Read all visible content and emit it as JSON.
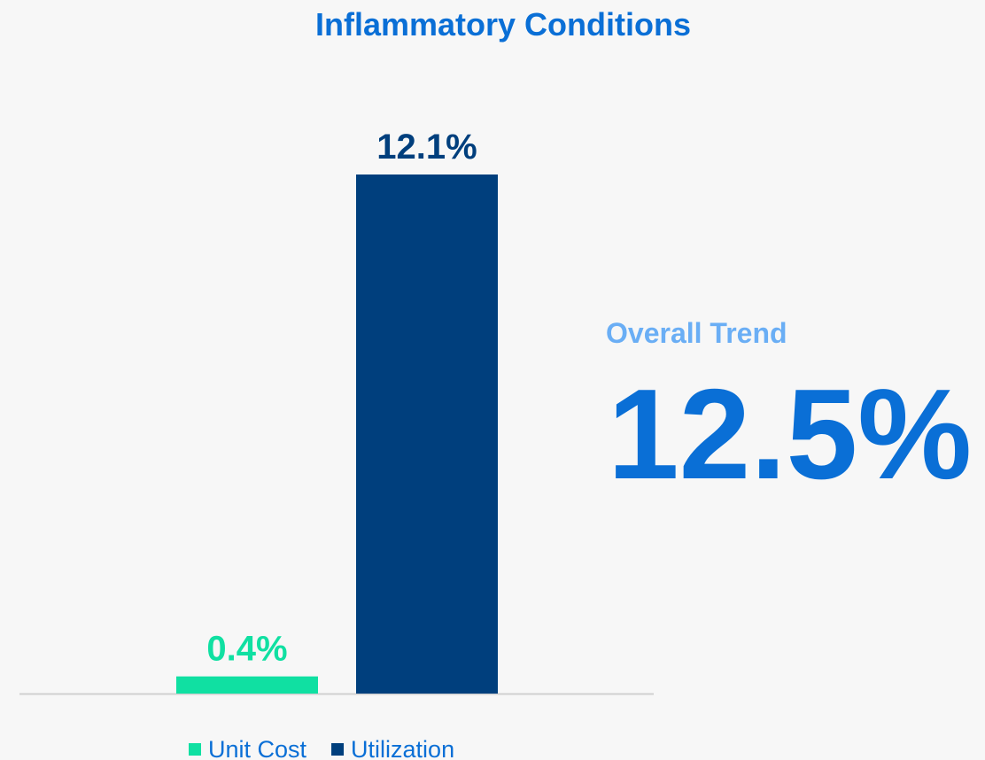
{
  "chart_data": {
    "type": "bar",
    "title": "Inflammatory Conditions",
    "categories": [
      null
    ],
    "series": [
      {
        "name": "Unit Cost",
        "color": "#10e0a2",
        "values": [
          0.4
        ],
        "value_labels": [
          "0.4%"
        ]
      },
      {
        "name": "Utilization",
        "color": "#003f7d",
        "values": [
          12.1
        ],
        "value_labels": [
          "12.1%"
        ]
      }
    ],
    "legend": "bottom",
    "annotations": [
      {
        "text": "Overall Trend"
      },
      {
        "text": "12.5%"
      }
    ]
  }
}
